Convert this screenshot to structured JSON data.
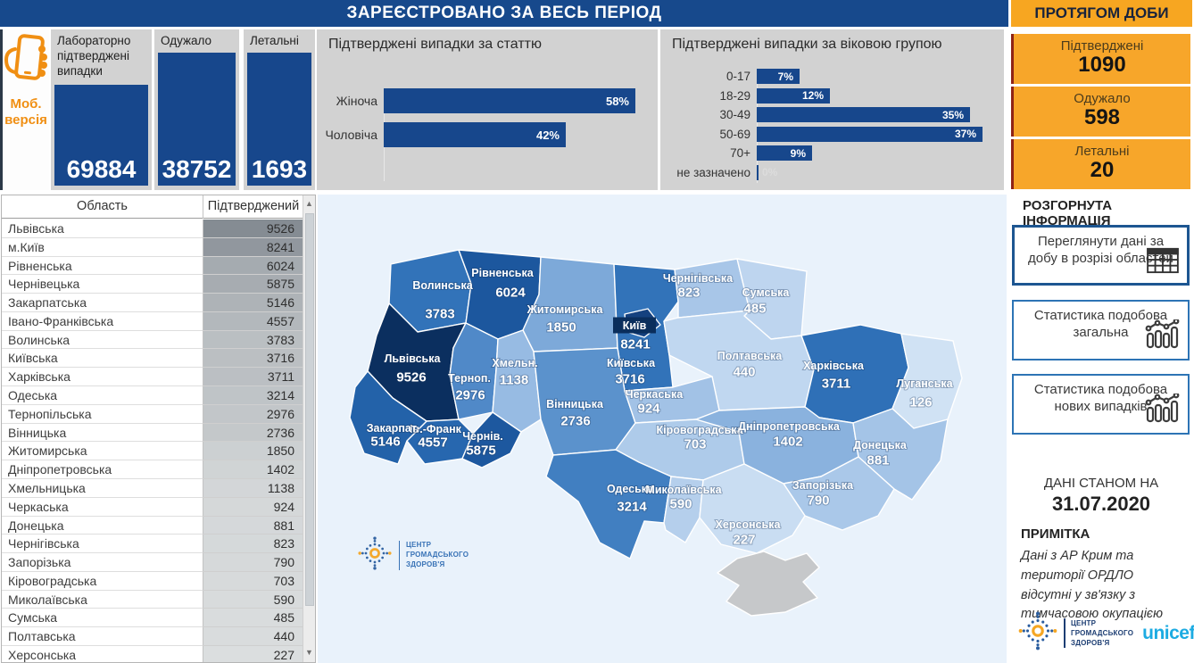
{
  "header": {
    "registered_title": "ЗАРЕЄСТРОВАНО ЗА ВЕСЬ ПЕРІОД",
    "daily_title": "ПРОТЯГОМ ДОБИ"
  },
  "mobile_link": {
    "line1": "Моб.",
    "line2": "версія"
  },
  "totals": {
    "cards": [
      {
        "label": "Лабораторно підтверджені випадки",
        "value": "69884"
      },
      {
        "label": "Одужало",
        "value": "38752"
      },
      {
        "label": "Летальні",
        "value": "1693"
      }
    ]
  },
  "chart_data": [
    {
      "type": "bar",
      "orientation": "horizontal",
      "title": "Підтверджені випадки за статтю",
      "categories": [
        "Жіноча",
        "Чоловіча"
      ],
      "values": [
        58,
        42
      ],
      "unit": "%",
      "value_labels": [
        "58%",
        "42%"
      ],
      "xlim": [
        0,
        60
      ],
      "bar_color": "#17478c",
      "grid": false
    },
    {
      "type": "bar",
      "orientation": "horizontal",
      "title": "Підтверджені випадки за віковою групою",
      "categories": [
        "0-17",
        "18-29",
        "30-49",
        "50-69",
        "70+",
        "не зазначено"
      ],
      "values": [
        7,
        12,
        35,
        37,
        9,
        0
      ],
      "unit": "%",
      "value_labels": [
        "7%",
        "12%",
        "35%",
        "37%",
        "9%",
        "0%"
      ],
      "xlim": [
        0,
        38
      ],
      "bar_color": "#17478c",
      "grid": false
    }
  ],
  "daily": {
    "cards": [
      {
        "label": "Підтверджені",
        "value": "1090"
      },
      {
        "label": "Одужало",
        "value": "598"
      },
      {
        "label": "Летальні",
        "value": "20"
      }
    ]
  },
  "info_panel": {
    "title": "РОЗГОРНУТА ІНФОРМАЦІЯ",
    "buttons": [
      {
        "label": "Переглянути дані за добу в розрізі областей",
        "icon": "table-icon"
      },
      {
        "label": "Статистика подобова загальна",
        "icon": "combo-chart-icon"
      },
      {
        "label": "Статистика подобова нових випадків",
        "icon": "combo-chart-icon"
      }
    ]
  },
  "as_of": {
    "label": "ДАНІ СТАНОМ НА",
    "date": "31.07.2020"
  },
  "note": {
    "title": "ПРИМІТКА",
    "text": "Дані з АР Крим та території ОРДЛО відсутні у зв'язку з тимчасовою окупацією"
  },
  "logos": {
    "phc_lines": [
      "ЦЕНТР",
      "ГРОМАДСЬКОГО",
      "ЗДОРОВ'Я"
    ],
    "unicef": "unicef"
  },
  "table": {
    "columns": [
      "Область",
      "Підтверджений"
    ],
    "rows": [
      [
        "Львівська",
        9526
      ],
      [
        "м.Київ",
        8241
      ],
      [
        "Рівненська",
        6024
      ],
      [
        "Чернівецька",
        5875
      ],
      [
        "Закарпатська",
        5146
      ],
      [
        "Івано-Франківська",
        4557
      ],
      [
        "Волинська",
        3783
      ],
      [
        "Київська",
        3716
      ],
      [
        "Харківська",
        3711
      ],
      [
        "Одеська",
        3214
      ],
      [
        "Тернопільська",
        2976
      ],
      [
        "Вінницька",
        2736
      ],
      [
        "Житомирська",
        1850
      ],
      [
        "Дніпропетровська",
        1402
      ],
      [
        "Хмельницька",
        1138
      ],
      [
        "Черкаська",
        924
      ],
      [
        "Донецька",
        881
      ],
      [
        "Чернігівська",
        823
      ],
      [
        "Запорізька",
        790
      ],
      [
        "Кіровоградська",
        703
      ],
      [
        "Миколаївська",
        590
      ],
      [
        "Сумська",
        485
      ],
      [
        "Полтавська",
        440
      ],
      [
        "Херсонська",
        227
      ]
    ]
  },
  "map": {
    "sea_color": "#e9f2fb",
    "crimea_color": "#c6c8ca",
    "kyiv_box_color": "#0a2e5c",
    "regions": [
      {
        "id": "volyn",
        "label": "Волинська",
        "value": "3783",
        "color": "#3273b9"
      },
      {
        "id": "rivne",
        "label": "Рівненська",
        "value": "6024",
        "color": "#1c579e"
      },
      {
        "id": "zhytomyr",
        "label": "Житомирська",
        "value": "1850",
        "color": "#7da9d9"
      },
      {
        "id": "kyivska",
        "label": "Київська",
        "value": "3716",
        "color": "#3273b9"
      },
      {
        "id": "chernihiv",
        "label": "Чернігівська",
        "value": "823",
        "color": "#a8c6e8"
      },
      {
        "id": "sumy",
        "label": "Сумська",
        "value": "485",
        "color": "#bed5ef"
      },
      {
        "id": "poltava",
        "label": "Полтавська",
        "value": "440",
        "color": "#c0d7f0"
      },
      {
        "id": "kharkiv",
        "label": "Харківська",
        "value": "3711",
        "color": "#2f70b7"
      },
      {
        "id": "luhansk",
        "label": "Луганська",
        "value": "126",
        "color": "#d0e2f4"
      },
      {
        "id": "lviv",
        "label": "Львівська",
        "value": "9526",
        "color": "#0b2f5f"
      },
      {
        "id": "ternopil",
        "label": "Терноп.",
        "value": "2976",
        "color": "#5089c8"
      },
      {
        "id": "khmelnytskyi",
        "label": "Хмельн.",
        "value": "1138",
        "color": "#97bbe3"
      },
      {
        "id": "vinnytsia",
        "label": "Вінницька",
        "value": "2736",
        "color": "#5b92cc"
      },
      {
        "id": "cherkasy",
        "label": "Черкаська",
        "value": "924",
        "color": "#a2c2e6"
      },
      {
        "id": "kirovohrad",
        "label": "Кіровоградська",
        "value": "703",
        "color": "#aecbea"
      },
      {
        "id": "dnipro",
        "label": "Дніпропетровська",
        "value": "1402",
        "color": "#8ab2de"
      },
      {
        "id": "donetsk",
        "label": "Донецька",
        "value": "881",
        "color": "#a4c4e7"
      },
      {
        "id": "ivano-frankivsk",
        "label": "Ів.-Франк",
        "value": "4557",
        "color": "#2767af"
      },
      {
        "id": "zakarpattia",
        "label": "Закарпат.",
        "value": "5146",
        "color": "#2362a9"
      },
      {
        "id": "chernivtsi",
        "label": "Чернів.",
        "value": "5875",
        "color": "#1d589f"
      },
      {
        "id": "odesa",
        "label": "Одеська",
        "value": "3214",
        "color": "#417fc1"
      },
      {
        "id": "mykolaiv",
        "label": "Миколаївська",
        "value": "590",
        "color": "#b5cfec"
      },
      {
        "id": "zaporizhzhia",
        "label": "Запорізька",
        "value": "790",
        "color": "#aac8e9"
      },
      {
        "id": "kherson",
        "label": "Херсонська",
        "value": "227",
        "color": "#c9ddf2"
      },
      {
        "id": "kyiv-city",
        "label": "Київ",
        "value": "8241",
        "color": "#15417f",
        "box": true
      }
    ]
  },
  "colors": {
    "primary_blue": "#17478c",
    "header_blue": "#17498c",
    "orange": "#f7a621",
    "panel_gray": "#d2d2d2",
    "unicef_blue": "#1cabe2",
    "accent_red": "#8f2315"
  }
}
